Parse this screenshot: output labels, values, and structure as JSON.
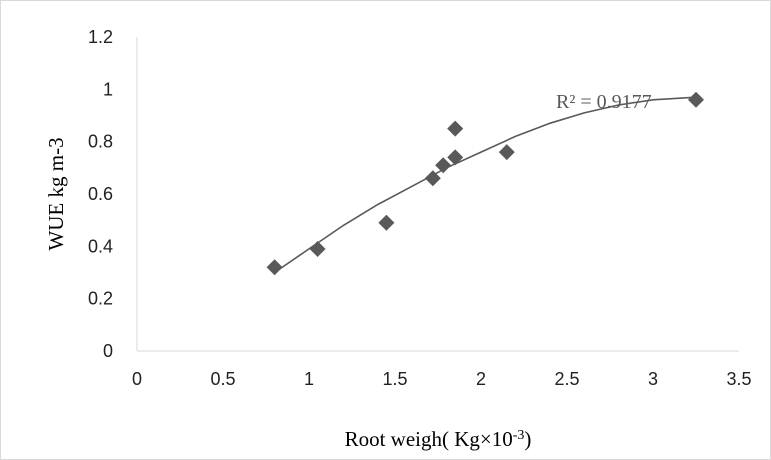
{
  "chart_data": {
    "type": "scatter",
    "xlabel": "Root weigh( Kg×10",
    "xlabel_superscript": "-3",
    "xlabel_suffix": ")",
    "ylabel": "WUE  kg m-3",
    "xlim": [
      0,
      3.5
    ],
    "ylim": [
      0,
      1.2
    ],
    "x_ticks": [
      0,
      0.5,
      1,
      1.5,
      2,
      2.5,
      3,
      3.5
    ],
    "x_tick_labels": [
      "0",
      "0.5",
      "1",
      "1.5",
      "2",
      "2.5",
      "3",
      "3.5"
    ],
    "y_ticks": [
      0,
      0.2,
      0.4,
      0.6,
      0.8,
      1,
      1.2
    ],
    "y_tick_labels": [
      "0",
      "0.2",
      "0.4",
      "0.6",
      "0.8",
      "1",
      "1.2"
    ],
    "grid": false,
    "legend": "none",
    "series": [
      {
        "marker": "diamond",
        "color": "#595959",
        "points": [
          {
            "x": 0.8,
            "y": 0.32
          },
          {
            "x": 1.05,
            "y": 0.39
          },
          {
            "x": 1.45,
            "y": 0.49
          },
          {
            "x": 1.72,
            "y": 0.66
          },
          {
            "x": 1.78,
            "y": 0.71
          },
          {
            "x": 1.85,
            "y": 0.74
          },
          {
            "x": 1.85,
            "y": 0.85
          },
          {
            "x": 2.15,
            "y": 0.76
          },
          {
            "x": 3.25,
            "y": 0.96
          }
        ]
      }
    ],
    "trendline": {
      "type": "polynomial",
      "color": "#595959",
      "x_range": [
        0.8,
        3.25
      ],
      "curve_points": [
        {
          "x": 0.8,
          "y": 0.3
        },
        {
          "x": 1.0,
          "y": 0.39
        },
        {
          "x": 1.2,
          "y": 0.48
        },
        {
          "x": 1.4,
          "y": 0.56
        },
        {
          "x": 1.6,
          "y": 0.63
        },
        {
          "x": 1.8,
          "y": 0.7
        },
        {
          "x": 2.0,
          "y": 0.76
        },
        {
          "x": 2.2,
          "y": 0.82
        },
        {
          "x": 2.4,
          "y": 0.87
        },
        {
          "x": 2.6,
          "y": 0.91
        },
        {
          "x": 2.8,
          "y": 0.94
        },
        {
          "x": 3.0,
          "y": 0.96
        },
        {
          "x": 3.25,
          "y": 0.97
        }
      ],
      "r_squared_label": "R² = 0.9177"
    }
  }
}
